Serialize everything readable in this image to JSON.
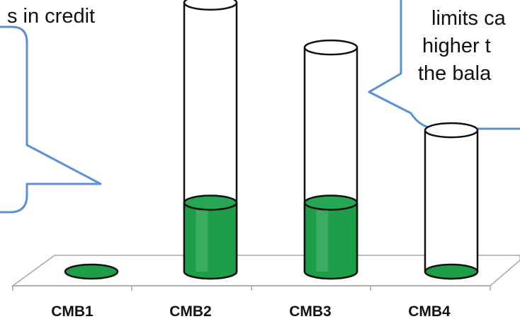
{
  "chart_data": {
    "type": "bar",
    "categories": [
      "CMB1",
      "CMB2",
      "CMB3",
      "CMB4"
    ],
    "series": [
      {
        "values": [
          0,
          100,
          100,
          0
        ]
      },
      {
        "values": [
          0,
          390,
          325,
          205
        ]
      }
    ],
    "title": "",
    "xlabel": "",
    "ylabel": "",
    "ylim": [
      0,
      400
    ],
    "grid": false,
    "colors": {
      "fill": "#1f9e4a",
      "fill_dark": "#0f6b2c",
      "fill_top": "#27a653",
      "outline": "#111111",
      "floor": "#a6a6a6",
      "callout_border": "#5b8fd6"
    }
  },
  "callouts": {
    "left_fragment": "s in credit",
    "right_lines": [
      "limits ca",
      "higher t",
      "the bala"
    ]
  }
}
